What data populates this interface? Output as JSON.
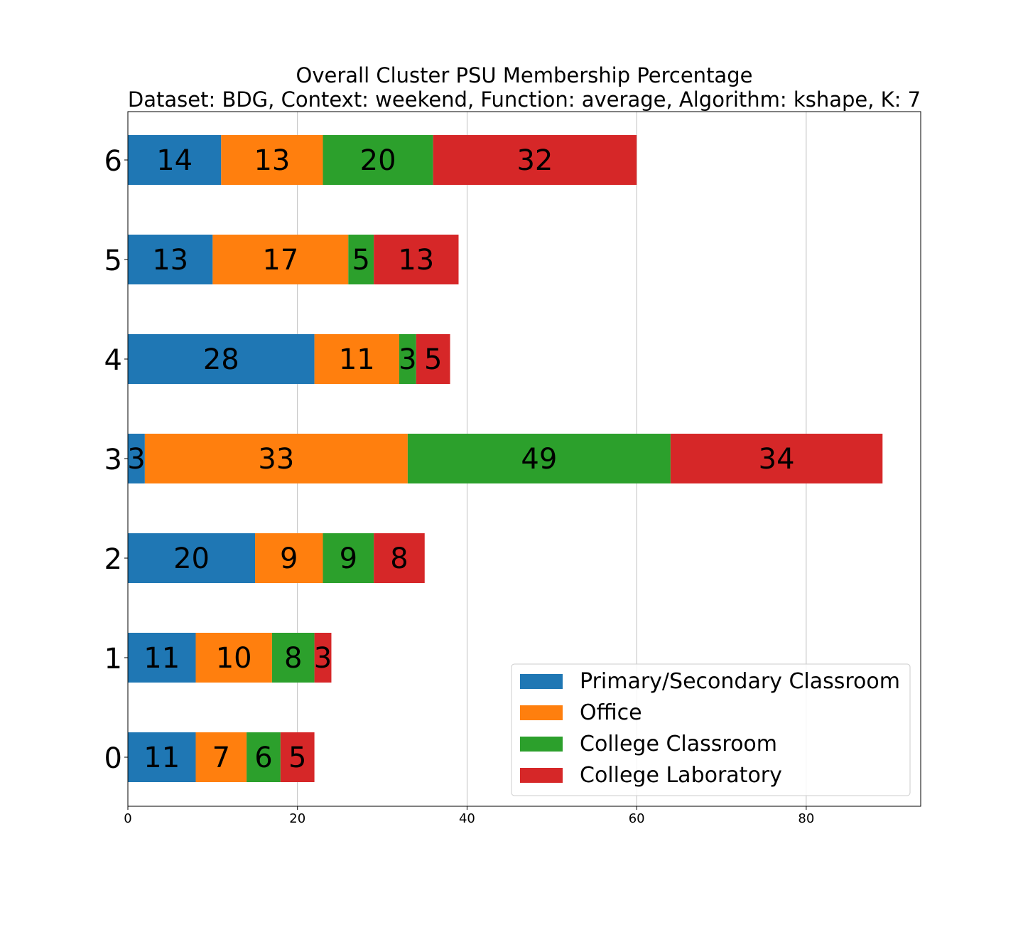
{
  "chart_data": {
    "type": "bar",
    "orientation": "horizontal",
    "stacked": true,
    "title": "Overall Cluster  PSU Membership Percentage",
    "subtitle": "Dataset: BDG, Context: weekend, Function: average, Algorithm: kshape, K: 7",
    "xlabel": "",
    "ylabel": "",
    "xlim": [
      0,
      93.5
    ],
    "xticks": [
      0,
      20,
      40,
      60,
      80
    ],
    "grid": "x",
    "legend_position": "lower-right",
    "categories": [
      "0",
      "1",
      "2",
      "3",
      "4",
      "5",
      "6"
    ],
    "series": [
      {
        "name": "Primary/Secondary Classroom",
        "color": "#1f77b4",
        "values": [
          8,
          8,
          15,
          2,
          22,
          10,
          11
        ],
        "labels": [
          "11",
          "11",
          "20",
          "3",
          "28",
          "13",
          "14"
        ]
      },
      {
        "name": "Office",
        "color": "#ff7f0e",
        "values": [
          6,
          9,
          8,
          31,
          10,
          16,
          12
        ],
        "labels": [
          "7",
          "10",
          "9",
          "33",
          "11",
          "17",
          "13"
        ]
      },
      {
        "name": "College Classroom",
        "color": "#2ca02c",
        "values": [
          4,
          5,
          6,
          31,
          2,
          3,
          13
        ],
        "labels": [
          "6",
          "8",
          "9",
          "49",
          "3",
          "5",
          "20"
        ]
      },
      {
        "name": "College Laboratory",
        "color": "#d62728",
        "values": [
          4,
          2,
          6,
          25,
          4,
          10,
          24
        ],
        "labels": [
          "5",
          "3",
          "8",
          "34",
          "5",
          "13",
          "32"
        ]
      }
    ]
  }
}
